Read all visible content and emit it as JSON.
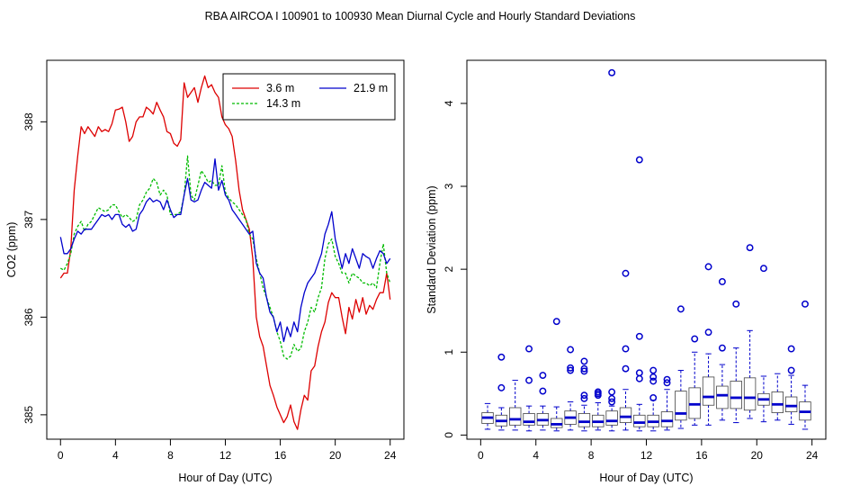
{
  "title": "RBA   AIRCOA I   100901 to 100930   Mean Diurnal Cycle and Hourly Standard Deviations",
  "colors": {
    "red": "#dd0000",
    "green": "#00bb00",
    "blue": "#0000cc",
    "box": "#0000cc",
    "axis": "#000000"
  },
  "chart_data": [
    {
      "type": "line",
      "title": "",
      "xlabel": "Hour of Day (UTC)",
      "ylabel": "CO2 (ppm)",
      "xlim": [
        -1,
        25
      ],
      "ylim": [
        384.75,
        388.63
      ],
      "xticks": [
        0,
        4,
        8,
        12,
        16,
        20,
        24
      ],
      "yticks": [
        385,
        386,
        387,
        388
      ],
      "legend_position": "top-right",
      "legend": [
        {
          "label": "3.6 m",
          "color": "#dd0000",
          "dash": ""
        },
        {
          "label": "21.9 m",
          "color": "#0000cc",
          "dash": ""
        },
        {
          "label": "14.3 m",
          "color": "#00bb00",
          "dash": "3,2"
        }
      ],
      "series": [
        {
          "name": "3.6 m",
          "color": "#dd0000",
          "dash": "",
          "x": [
            0,
            0.25,
            0.5,
            0.75,
            1,
            1.25,
            1.5,
            1.75,
            2,
            2.25,
            2.5,
            2.75,
            3,
            3.25,
            3.5,
            3.75,
            4,
            4.25,
            4.5,
            4.75,
            5,
            5.25,
            5.5,
            5.75,
            6,
            6.25,
            6.5,
            6.75,
            7,
            7.25,
            7.5,
            7.75,
            8,
            8.25,
            8.5,
            8.75,
            9,
            9.25,
            9.5,
            9.75,
            10,
            10.25,
            10.5,
            10.75,
            11,
            11.25,
            11.5,
            11.75,
            12,
            12.25,
            12.5,
            12.75,
            13,
            13.25,
            13.5,
            13.75,
            14,
            14.25,
            14.5,
            14.75,
            15,
            15.25,
            15.5,
            15.75,
            16,
            16.25,
            16.5,
            16.75,
            17,
            17.25,
            17.5,
            17.75,
            18,
            18.25,
            18.5,
            18.75,
            19,
            19.25,
            19.5,
            19.75,
            20,
            20.25,
            20.5,
            20.75,
            21,
            21.25,
            21.5,
            21.75,
            22,
            22.25,
            22.5,
            22.75,
            23,
            23.25,
            23.5,
            23.75,
            24
          ],
          "values": [
            386.4,
            386.45,
            386.45,
            386.7,
            387.3,
            387.65,
            387.95,
            387.88,
            387.95,
            387.9,
            387.85,
            387.95,
            387.9,
            387.92,
            387.9,
            387.98,
            388.12,
            388.13,
            388.15,
            388.0,
            387.8,
            387.85,
            388.0,
            388.05,
            388.05,
            388.15,
            388.12,
            388.08,
            388.2,
            388.12,
            388.05,
            387.9,
            387.88,
            387.78,
            387.75,
            387.82,
            388.4,
            388.25,
            388.3,
            388.35,
            388.2,
            388.35,
            388.47,
            388.35,
            388.38,
            388.3,
            388.25,
            388.05,
            387.97,
            387.93,
            387.85,
            387.6,
            387.3,
            387.1,
            387.0,
            386.9,
            386.6,
            386.0,
            385.8,
            385.7,
            385.5,
            385.3,
            385.2,
            385.08,
            385.0,
            384.92,
            384.98,
            385.1,
            384.93,
            384.85,
            385.05,
            385.2,
            385.15,
            385.45,
            385.5,
            385.7,
            385.85,
            385.95,
            386.15,
            386.25,
            386.2,
            386.2,
            386.0,
            385.83,
            386.1,
            385.98,
            386.18,
            386.05,
            386.2,
            386.03,
            386.12,
            386.08,
            386.18,
            386.25,
            386.25,
            386.45,
            386.18
          ],
          "x_note": "same x as values"
        },
        {
          "name": "14.3 m",
          "color": "#00bb00",
          "dash": "3,2",
          "x": [
            0,
            0.25,
            0.5,
            0.75,
            1,
            1.25,
            1.5,
            1.75,
            2,
            2.25,
            2.5,
            2.75,
            3,
            3.25,
            3.5,
            3.75,
            4,
            4.25,
            4.5,
            4.75,
            5,
            5.25,
            5.5,
            5.75,
            6,
            6.25,
            6.5,
            6.75,
            7,
            7.25,
            7.5,
            7.75,
            8,
            8.25,
            8.5,
            8.75,
            9,
            9.25,
            9.5,
            9.75,
            10,
            10.25,
            10.5,
            10.75,
            11,
            11.25,
            11.5,
            11.75,
            12,
            12.25,
            12.5,
            12.75,
            13,
            13.25,
            13.5,
            13.75,
            14,
            14.25,
            14.5,
            14.75,
            15,
            15.25,
            15.5,
            15.75,
            16,
            16.25,
            16.5,
            16.75,
            17,
            17.25,
            17.5,
            17.75,
            18,
            18.25,
            18.5,
            18.75,
            19,
            19.25,
            19.5,
            19.75,
            20,
            20.25,
            20.5,
            20.75,
            21,
            21.25,
            21.5,
            21.75,
            22,
            22.25,
            22.5,
            22.75,
            23,
            23.25,
            23.5,
            23.75,
            24
          ],
          "values": [
            386.5,
            386.48,
            386.55,
            386.65,
            386.85,
            386.93,
            386.98,
            386.88,
            386.95,
            386.98,
            387.05,
            387.12,
            387.1,
            387.08,
            387.1,
            387.15,
            387.15,
            387.08,
            387.02,
            387.05,
            387.02,
            386.98,
            387.0,
            387.15,
            387.2,
            387.28,
            387.32,
            387.42,
            387.38,
            387.25,
            387.3,
            387.25,
            387.05,
            387.05,
            387.05,
            387.08,
            387.25,
            387.65,
            387.25,
            387.2,
            387.35,
            387.5,
            387.45,
            387.38,
            387.4,
            387.35,
            387.35,
            387.55,
            387.28,
            387.22,
            387.18,
            387.15,
            387.1,
            387.05,
            387.0,
            386.85,
            386.8,
            386.6,
            386.45,
            386.3,
            386.2,
            386.1,
            386.0,
            385.85,
            385.75,
            385.6,
            385.57,
            385.6,
            385.72,
            385.65,
            385.68,
            385.85,
            385.95,
            386.1,
            386.05,
            386.2,
            386.3,
            386.6,
            386.75,
            386.8,
            386.62,
            386.55,
            386.45,
            386.45,
            386.35,
            386.45,
            386.42,
            386.4,
            386.35,
            386.35,
            386.32,
            386.35,
            386.3,
            386.55,
            386.75,
            386.45,
            386.35
          ],
          "x_note": "same x as values"
        },
        {
          "name": "21.9 m",
          "color": "#0000cc",
          "dash": "",
          "x": [
            0,
            0.25,
            0.5,
            0.75,
            1,
            1.25,
            1.5,
            1.75,
            2,
            2.25,
            2.5,
            2.75,
            3,
            3.25,
            3.5,
            3.75,
            4,
            4.25,
            4.5,
            4.75,
            5,
            5.25,
            5.5,
            5.75,
            6,
            6.25,
            6.5,
            6.75,
            7,
            7.25,
            7.5,
            7.75,
            8,
            8.25,
            8.5,
            8.75,
            9,
            9.25,
            9.5,
            9.75,
            10,
            10.25,
            10.5,
            10.75,
            11,
            11.25,
            11.5,
            11.75,
            12,
            12.25,
            12.5,
            12.75,
            13,
            13.25,
            13.5,
            13.75,
            14,
            14.25,
            14.5,
            14.75,
            15,
            15.25,
            15.5,
            15.75,
            16,
            16.25,
            16.5,
            16.75,
            17,
            17.25,
            17.5,
            17.75,
            18,
            18.25,
            18.5,
            18.75,
            19,
            19.25,
            19.5,
            19.75,
            20,
            20.25,
            20.5,
            20.75,
            21,
            21.25,
            21.5,
            21.75,
            22,
            22.25,
            22.5,
            22.75,
            23,
            23.25,
            23.5,
            23.75,
            24
          ],
          "values": [
            386.82,
            386.65,
            386.65,
            386.7,
            386.8,
            386.88,
            386.85,
            386.9,
            386.9,
            386.9,
            386.95,
            387.0,
            387.05,
            387.03,
            387.05,
            387.0,
            387.05,
            387.05,
            386.95,
            386.92,
            386.95,
            386.88,
            386.9,
            387.05,
            387.1,
            387.18,
            387.22,
            387.18,
            387.2,
            387.18,
            387.1,
            387.2,
            387.1,
            387.02,
            387.05,
            387.05,
            387.25,
            387.42,
            387.2,
            387.18,
            387.2,
            387.3,
            387.38,
            387.35,
            387.32,
            387.62,
            387.3,
            387.4,
            387.25,
            387.2,
            387.1,
            387.05,
            387.0,
            386.95,
            386.9,
            386.85,
            386.88,
            386.55,
            386.45,
            386.4,
            386.2,
            386.05,
            386.0,
            385.85,
            385.95,
            385.75,
            385.9,
            385.8,
            385.95,
            385.85,
            386.1,
            386.25,
            386.35,
            386.4,
            386.45,
            386.55,
            386.65,
            386.85,
            386.95,
            387.08,
            386.8,
            386.65,
            386.5,
            386.65,
            386.55,
            386.7,
            386.6,
            386.5,
            386.65,
            386.62,
            386.6,
            386.5,
            386.6,
            386.68,
            386.65,
            386.55,
            386.6
          ],
          "x_note": "same x as values"
        }
      ]
    },
    {
      "type": "box",
      "title": "",
      "xlabel": "Hour of Day (UTC)",
      "ylabel": "Standard Deviation (ppm)",
      "xlim": [
        -1,
        25
      ],
      "ylim": [
        -0.05,
        4.52
      ],
      "xticks": [
        0,
        4,
        8,
        12,
        16,
        20,
        24
      ],
      "yticks": [
        0,
        1,
        2,
        3,
        4
      ],
      "boxes": [
        {
          "x": 0.5,
          "lo": 0.07,
          "q1": 0.14,
          "med": 0.21,
          "q3": 0.27,
          "hi": 0.38,
          "out": []
        },
        {
          "x": 1.5,
          "lo": 0.06,
          "q1": 0.11,
          "med": 0.17,
          "q3": 0.24,
          "hi": 0.33,
          "out": [
            0.57,
            0.94
          ]
        },
        {
          "x": 2.5,
          "lo": 0.06,
          "q1": 0.12,
          "med": 0.19,
          "q3": 0.33,
          "hi": 0.66,
          "out": []
        },
        {
          "x": 3.5,
          "lo": 0.05,
          "q1": 0.12,
          "med": 0.16,
          "q3": 0.26,
          "hi": 0.35,
          "out": [
            0.66,
            1.04
          ]
        },
        {
          "x": 4.5,
          "lo": 0.06,
          "q1": 0.12,
          "med": 0.18,
          "q3": 0.26,
          "hi": 0.35,
          "out": [
            0.53,
            0.72
          ]
        },
        {
          "x": 5.5,
          "lo": 0.05,
          "q1": 0.09,
          "med": 0.13,
          "q3": 0.2,
          "hi": 0.34,
          "out": [
            1.37
          ]
        },
        {
          "x": 6.5,
          "lo": 0.06,
          "q1": 0.13,
          "med": 0.21,
          "q3": 0.29,
          "hi": 0.4,
          "out": [
            0.78,
            0.81,
            1.03
          ]
        },
        {
          "x": 7.5,
          "lo": 0.05,
          "q1": 0.1,
          "med": 0.16,
          "q3": 0.26,
          "hi": 0.36,
          "out": [
            0.44,
            0.48,
            0.77,
            0.8,
            0.89
          ]
        },
        {
          "x": 8.5,
          "lo": 0.06,
          "q1": 0.1,
          "med": 0.16,
          "q3": 0.24,
          "hi": 0.39,
          "out": [
            0.48,
            0.5,
            0.52
          ]
        },
        {
          "x": 9.5,
          "lo": 0.05,
          "q1": 0.12,
          "med": 0.17,
          "q3": 0.29,
          "hi": 0.35,
          "out": [
            0.4,
            0.44,
            0.52,
            4.37
          ]
        },
        {
          "x": 10.5,
          "lo": 0.06,
          "q1": 0.15,
          "med": 0.22,
          "q3": 0.33,
          "hi": 0.55,
          "out": [
            0.8,
            1.04,
            1.95
          ]
        },
        {
          "x": 11.5,
          "lo": 0.05,
          "q1": 0.1,
          "med": 0.15,
          "q3": 0.24,
          "hi": 0.37,
          "out": [
            0.68,
            0.75,
            1.19,
            3.32
          ]
        },
        {
          "x": 12.5,
          "lo": 0.05,
          "q1": 0.1,
          "med": 0.16,
          "q3": 0.24,
          "hi": 0.42,
          "out": [
            0.45,
            0.65,
            0.7,
            0.78
          ]
        },
        {
          "x": 13.5,
          "lo": 0.06,
          "q1": 0.1,
          "med": 0.17,
          "q3": 0.28,
          "hi": 0.55,
          "out": [
            0.63,
            0.67
          ]
        },
        {
          "x": 14.5,
          "lo": 0.08,
          "q1": 0.18,
          "med": 0.26,
          "q3": 0.53,
          "hi": 0.78,
          "out": [
            1.52
          ]
        },
        {
          "x": 15.5,
          "lo": 0.12,
          "q1": 0.2,
          "med": 0.37,
          "q3": 0.57,
          "hi": 1.0,
          "out": [
            1.16
          ]
        },
        {
          "x": 16.5,
          "lo": 0.12,
          "q1": 0.36,
          "med": 0.46,
          "q3": 0.7,
          "hi": 0.98,
          "out": [
            1.24,
            2.03
          ]
        },
        {
          "x": 17.5,
          "lo": 0.18,
          "q1": 0.32,
          "med": 0.48,
          "q3": 0.59,
          "hi": 0.85,
          "out": [
            1.05,
            1.85
          ]
        },
        {
          "x": 18.5,
          "lo": 0.15,
          "q1": 0.32,
          "med": 0.45,
          "q3": 0.65,
          "hi": 1.05,
          "out": [
            1.58
          ]
        },
        {
          "x": 19.5,
          "lo": 0.2,
          "q1": 0.3,
          "med": 0.45,
          "q3": 0.69,
          "hi": 1.26,
          "out": [
            2.26
          ]
        },
        {
          "x": 20.5,
          "lo": 0.16,
          "q1": 0.36,
          "med": 0.43,
          "q3": 0.5,
          "hi": 0.71,
          "out": [
            2.01
          ]
        },
        {
          "x": 21.5,
          "lo": 0.18,
          "q1": 0.27,
          "med": 0.37,
          "q3": 0.52,
          "hi": 0.74,
          "out": []
        },
        {
          "x": 22.5,
          "lo": 0.13,
          "q1": 0.28,
          "med": 0.35,
          "q3": 0.46,
          "hi": 0.72,
          "out": [
            0.78,
            1.04
          ]
        },
        {
          "x": 23.5,
          "lo": 0.07,
          "q1": 0.18,
          "med": 0.28,
          "q3": 0.4,
          "hi": 0.6,
          "out": [
            1.58
          ]
        }
      ]
    }
  ]
}
